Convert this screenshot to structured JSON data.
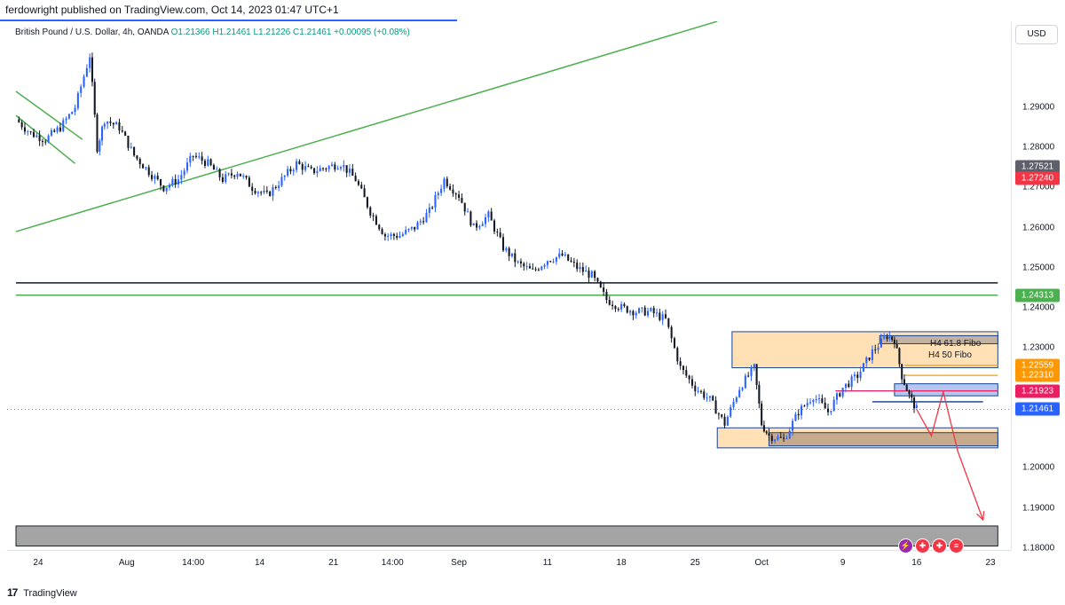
{
  "header": {
    "text": "ferdowright published on TradingView.com, Oct 14, 2023 01:47 UTC+1"
  },
  "legend": {
    "symbol": "British Pound / U.S. Dollar, 4h, OANDA",
    "open": "O1.21366",
    "high": "H1.21461",
    "low": "L1.21226",
    "close": "C1.21461",
    "change": "+0.00095 (+0.08%)"
  },
  "currency": "USD",
  "footer": {
    "brand": "TradingView",
    "icon": "tradingview-logo-icon"
  },
  "annotations": {
    "fibo_618": "H4 61.8 Fibo",
    "fibo_50": "H4 50 Fibo"
  },
  "events": [
    {
      "icon": "lightning-icon",
      "color": "#9c27b0"
    },
    {
      "icon": "uk-flag-icon",
      "color": "#f23645"
    },
    {
      "icon": "uk-flag-icon",
      "color": "#f23645"
    },
    {
      "icon": "us-flag-icon",
      "color": "#f23645"
    }
  ],
  "colors": {
    "candle_up": "#2962ff",
    "candle_down": "#131722",
    "trendline": "#4caf50",
    "support_line": "#131722",
    "zone_fill": "#ffe0b2",
    "zone_border": "#0d3b8c",
    "arrow": "#f23645"
  },
  "chart_data": {
    "type": "candlestick",
    "symbol": "GBPUSD",
    "timeframe": "4h",
    "ylim": [
      1.1795,
      1.3115
    ],
    "x_range": [
      0,
      66
    ],
    "price_ticks": [
      "1.29000",
      "1.28000",
      "1.27000",
      "1.26000",
      "1.25000",
      "1.24000",
      "1.23000",
      "1.20000",
      "1.19000",
      "1.18000"
    ],
    "price_tick_values": [
      1.29,
      1.28,
      1.27,
      1.26,
      1.25,
      1.24,
      1.23,
      1.2,
      1.19,
      1.18
    ],
    "price_tags": [
      {
        "label": "1.27521",
        "value": 1.27521,
        "color": "#5d606b"
      },
      {
        "label": "1.27240",
        "value": 1.2724,
        "color": "#f23645"
      },
      {
        "label": "1.24313",
        "value": 1.24313,
        "color": "#4caf50"
      },
      {
        "label": "1.22559",
        "value": 1.22559,
        "color": "#ff9800"
      },
      {
        "label": "1.22310",
        "value": 1.2231,
        "color": "#ff9800"
      },
      {
        "label": "1.21923",
        "value": 1.21923,
        "color": "#e91e63"
      },
      {
        "label": "1.21461",
        "value": 1.21461,
        "color": "#2962ff"
      }
    ],
    "time_labels": [
      {
        "label": "24",
        "x": 1.5
      },
      {
        "label": "Aug",
        "x": 7.5
      },
      {
        "label": "14:00",
        "x": 12.0
      },
      {
        "label": "14",
        "x": 16.5
      },
      {
        "label": "21",
        "x": 21.5
      },
      {
        "label": "14:00",
        "x": 25.5
      },
      {
        "label": "Sep",
        "x": 30.0
      },
      {
        "label": "11",
        "x": 36.0
      },
      {
        "label": "18",
        "x": 41.0
      },
      {
        "label": "25",
        "x": 46.0
      },
      {
        "label": "Oct",
        "x": 50.5
      },
      {
        "label": "9",
        "x": 56.0
      },
      {
        "label": "16",
        "x": 61.0
      },
      {
        "label": "23",
        "x": 66.0
      }
    ],
    "path": [
      [
        0,
        1.287
      ],
      [
        1,
        1.2835
      ],
      [
        2,
        1.282
      ],
      [
        3,
        1.285
      ],
      [
        4,
        1.29
      ],
      [
        5,
        1.303
      ],
      [
        5.5,
        1.28
      ],
      [
        6,
        1.287
      ],
      [
        7,
        1.285
      ],
      [
        8,
        1.278
      ],
      [
        9,
        1.274
      ],
      [
        10,
        1.27
      ],
      [
        11,
        1.272
      ],
      [
        12,
        1.278
      ],
      [
        13,
        1.276
      ],
      [
        14,
        1.272
      ],
      [
        15,
        1.274
      ],
      [
        16,
        1.27
      ],
      [
        17,
        1.268
      ],
      [
        18,
        1.272
      ],
      [
        19,
        1.276
      ],
      [
        20,
        1.274
      ],
      [
        21,
        1.275
      ],
      [
        22,
        1.276
      ],
      [
        23,
        1.272
      ],
      [
        24,
        1.264
      ],
      [
        25,
        1.258
      ],
      [
        26,
        1.258
      ],
      [
        27,
        1.26
      ],
      [
        28,
        1.264
      ],
      [
        29,
        1.272
      ],
      [
        30,
        1.268
      ],
      [
        31,
        1.26
      ],
      [
        32,
        1.263
      ],
      [
        33,
        1.255
      ],
      [
        34,
        1.251
      ],
      [
        35,
        1.249
      ],
      [
        36,
        1.252
      ],
      [
        37,
        1.253
      ],
      [
        38,
        1.25
      ],
      [
        39,
        1.248
      ],
      [
        40,
        1.242
      ],
      [
        41,
        1.24
      ],
      [
        42,
        1.239
      ],
      [
        43,
        1.239
      ],
      [
        44,
        1.237
      ],
      [
        45,
        1.225
      ],
      [
        46,
        1.22
      ],
      [
        47,
        1.217
      ],
      [
        48,
        1.211
      ],
      [
        49,
        1.22
      ],
      [
        50,
        1.225
      ],
      [
        50.5,
        1.211
      ],
      [
        51,
        1.208
      ],
      [
        52,
        1.207
      ],
      [
        53,
        1.214
      ],
      [
        54,
        1.218
      ],
      [
        55,
        1.214
      ],
      [
        56,
        1.22
      ],
      [
        57,
        1.223
      ],
      [
        58,
        1.229
      ],
      [
        59,
        1.233
      ],
      [
        59.5,
        1.232
      ],
      [
        60,
        1.223
      ],
      [
        60.5,
        1.218
      ],
      [
        61,
        1.2146
      ]
    ],
    "trendlines": [
      {
        "name": "rising-channel",
        "x1": 0,
        "y1": 1.259,
        "x2": 47.5,
        "y2": 1.3115
      },
      {
        "name": "falling-channel-upper",
        "x1": 0,
        "y1": 1.294,
        "x2": 4.5,
        "y2": 1.282
      },
      {
        "name": "falling-channel-lower",
        "x1": 0,
        "y1": 1.288,
        "x2": 4,
        "y2": 1.276
      }
    ],
    "horizontal_lines": [
      {
        "name": "resistance-black",
        "y": 1.2462,
        "x1": 0,
        "x2": 66.5,
        "color": "#131722"
      },
      {
        "name": "support-green",
        "y": 1.24313,
        "x1": 0,
        "x2": 66.5,
        "color": "#4caf50"
      }
    ],
    "zones": [
      {
        "name": "supply-zone",
        "x1": 48.5,
        "x2": 66.5,
        "y1": 1.234,
        "y2": 1.225,
        "fill": "#ffe0b2"
      },
      {
        "name": "demand-zone",
        "x1": 47.5,
        "x2": 66.5,
        "y1": 1.21,
        "y2": 1.205,
        "fill": "#ffe0b2"
      },
      {
        "name": "demand-inner-zone",
        "x1": 51,
        "x2": 66.5,
        "y1": 1.2088,
        "y2": 1.2055,
        "fill": "#c5a88a"
      },
      {
        "name": "supply-inner-zone",
        "x1": 58.5,
        "x2": 66.5,
        "y1": 1.233,
        "y2": 1.231,
        "fill": "#c0b0a0"
      },
      {
        "name": "fibo-zone",
        "x1": 59.5,
        "x2": 66.5,
        "y1": 1.221,
        "y2": 1.218,
        "fill": "#b3c5ef"
      },
      {
        "name": "bottom-band",
        "x1": 0,
        "x2": 66.5,
        "y1": 1.1855,
        "y2": 1.1805,
        "fill": "#a0a0a0"
      }
    ],
    "fibo_lines": [
      {
        "label": "H4 61.8 Fibo",
        "y": 1.22559,
        "x1": 60.2,
        "x2": 66.5,
        "color": "#ff9800"
      },
      {
        "label": "H4 50 Fibo",
        "y": 1.2231,
        "x1": 60.2,
        "x2": 66.5,
        "color": "#ff9800"
      },
      {
        "label": "",
        "y": 1.21923,
        "x1": 55.5,
        "x2": 66.5,
        "color": "#e91e63"
      },
      {
        "label": "",
        "y": 1.2165,
        "x1": 58,
        "x2": 65.5,
        "color": "#0d3b8c"
      }
    ],
    "projection": [
      [
        61,
        1.2146
      ],
      [
        62,
        1.208
      ],
      [
        62.8,
        1.219
      ],
      [
        63.8,
        1.204
      ],
      [
        65.5,
        1.187
      ]
    ],
    "current_price": 1.21461
  }
}
